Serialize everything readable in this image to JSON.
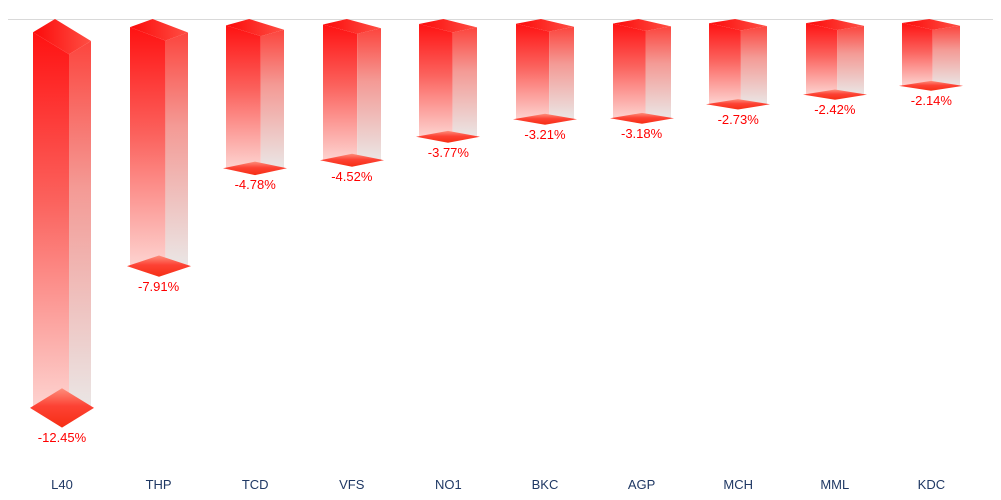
{
  "chart_data": {
    "type": "bar",
    "subtype": "3d-prism-columns-negative",
    "title": "",
    "xlabel": "",
    "ylabel": "",
    "categories": [
      "L40",
      "THP",
      "TCD",
      "VFS",
      "NO1",
      "BKC",
      "AGP",
      "MCH",
      "MML",
      "KDC"
    ],
    "values": [
      -12.45,
      -7.91,
      -4.78,
      -4.52,
      -3.77,
      -3.21,
      -3.18,
      -2.73,
      -2.42,
      -2.14
    ],
    "value_labels": [
      "-12.45%",
      "-7.91%",
      "-4.78%",
      "-4.52%",
      "-3.77%",
      "-3.21%",
      "-3.18%",
      "-2.73%",
      "-2.42%",
      "-2.14%"
    ],
    "ylim": [
      -13,
      0
    ],
    "baseline": 0,
    "grid": false,
    "legend": false,
    "bars_hang_down_from_zero_line": true,
    "colors": {
      "bar_top_red": "#ff1212",
      "bar_left_face_fade": "#fdd3d0",
      "bar_right_face_fade": "#eae6e5",
      "bar_tip_diamond": "#fd4234",
      "value_label": "#ff0000",
      "category_label": "#1f3864",
      "baseline_line": "#d9d9d9",
      "background": "#ffffff"
    }
  }
}
